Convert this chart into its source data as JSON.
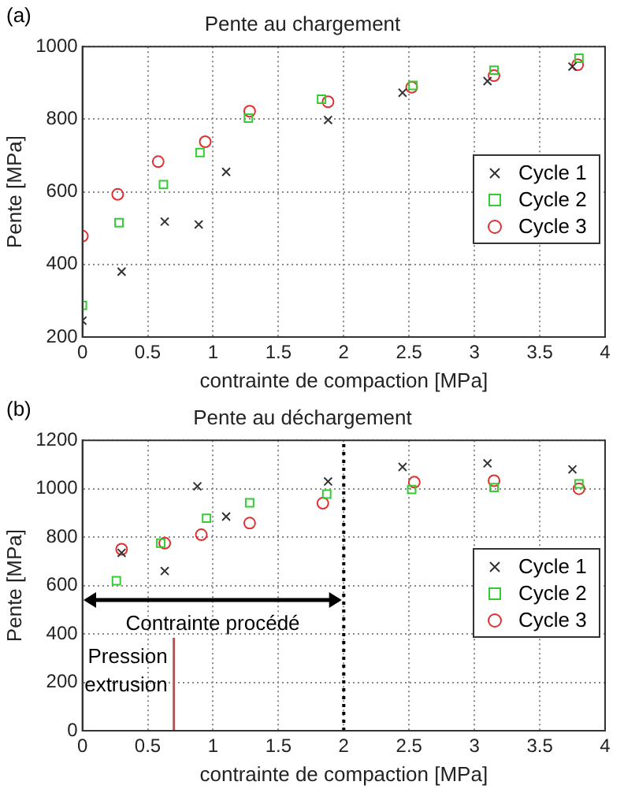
{
  "chart_data": [
    {
      "type": "scatter",
      "title": "Pente au chargement",
      "xlabel": "contrainte de compaction [MPa]",
      "ylabel": "Pente [MPa]",
      "annotations": [
        "(a)"
      ],
      "xlim": [
        0,
        4
      ],
      "xticks": [
        0,
        0.5,
        1,
        1.5,
        2,
        2.5,
        3,
        3.5,
        4
      ],
      "ylim": [
        200,
        1000
      ],
      "yticks": [
        200,
        400,
        600,
        800,
        1000
      ],
      "grid": true,
      "legend": "right",
      "series": [
        {
          "name": "Cycle 1",
          "color": "#333333",
          "marker": "cross",
          "x": [
            0,
            0.3,
            0.63,
            0.89,
            1.1,
            1.88,
            2.45,
            3.1,
            3.75
          ],
          "values": [
            245,
            380,
            518,
            510,
            655,
            798,
            873,
            905,
            945
          ]
        },
        {
          "name": "Cycle 2",
          "color": "#33cc33",
          "marker": "square",
          "x": [
            0,
            0.28,
            0.62,
            0.9,
            1.27,
            1.83,
            2.53,
            3.15,
            3.8
          ],
          "values": [
            287,
            515,
            620,
            708,
            803,
            855,
            893,
            935,
            968
          ]
        },
        {
          "name": "Cycle 3",
          "color": "#e03030",
          "marker": "circle",
          "x": [
            0,
            0.27,
            0.58,
            0.94,
            1.28,
            1.88,
            2.52,
            3.15,
            3.79
          ],
          "values": [
            478,
            593,
            683,
            738,
            822,
            848,
            888,
            920,
            950
          ]
        }
      ]
    },
    {
      "type": "scatter",
      "title": "Pente au déchargement",
      "xlabel": "contrainte de compaction [MPa]",
      "ylabel": "Pente [MPa]",
      "annotations": [
        "(b)",
        "Contrainte procédé"
      ],
      "xlim": [
        0,
        4
      ],
      "xticks": [
        0,
        0.5,
        1,
        1.5,
        2,
        2.5,
        3,
        3.5,
        4
      ],
      "ylim": [
        0,
        1200
      ],
      "yticks": [
        0,
        200,
        400,
        600,
        800,
        1000,
        1200
      ],
      "grid": true,
      "legend": "right",
      "ref_lines": [
        {
          "axis": "x",
          "value": 2,
          "color": "#000000",
          "line_style": "dotted"
        },
        {
          "axis": "x",
          "value": 0.7,
          "label": "Pression extrusion",
          "color": "#c0504d",
          "line_style": "solid"
        }
      ],
      "series": [
        {
          "name": "Cycle 1",
          "color": "#333333",
          "marker": "cross",
          "x": [
            0.3,
            0.63,
            0.88,
            1.1,
            1.88,
            2.45,
            3.1,
            3.75
          ],
          "values": [
            735,
            660,
            1010,
            885,
            1030,
            1090,
            1105,
            1080
          ]
        },
        {
          "name": "Cycle 2",
          "color": "#33cc33",
          "marker": "square",
          "x": [
            0.26,
            0.6,
            0.95,
            1.28,
            1.87,
            2.52,
            3.15,
            3.8
          ],
          "values": [
            620,
            775,
            878,
            942,
            978,
            997,
            1005,
            1020
          ]
        },
        {
          "name": "Cycle 3",
          "color": "#e03030",
          "marker": "circle",
          "x": [
            0.3,
            0.63,
            0.91,
            1.28,
            1.84,
            2.54,
            3.15,
            3.8
          ],
          "values": [
            750,
            775,
            810,
            858,
            940,
            1027,
            1033,
            1000
          ]
        }
      ]
    }
  ]
}
